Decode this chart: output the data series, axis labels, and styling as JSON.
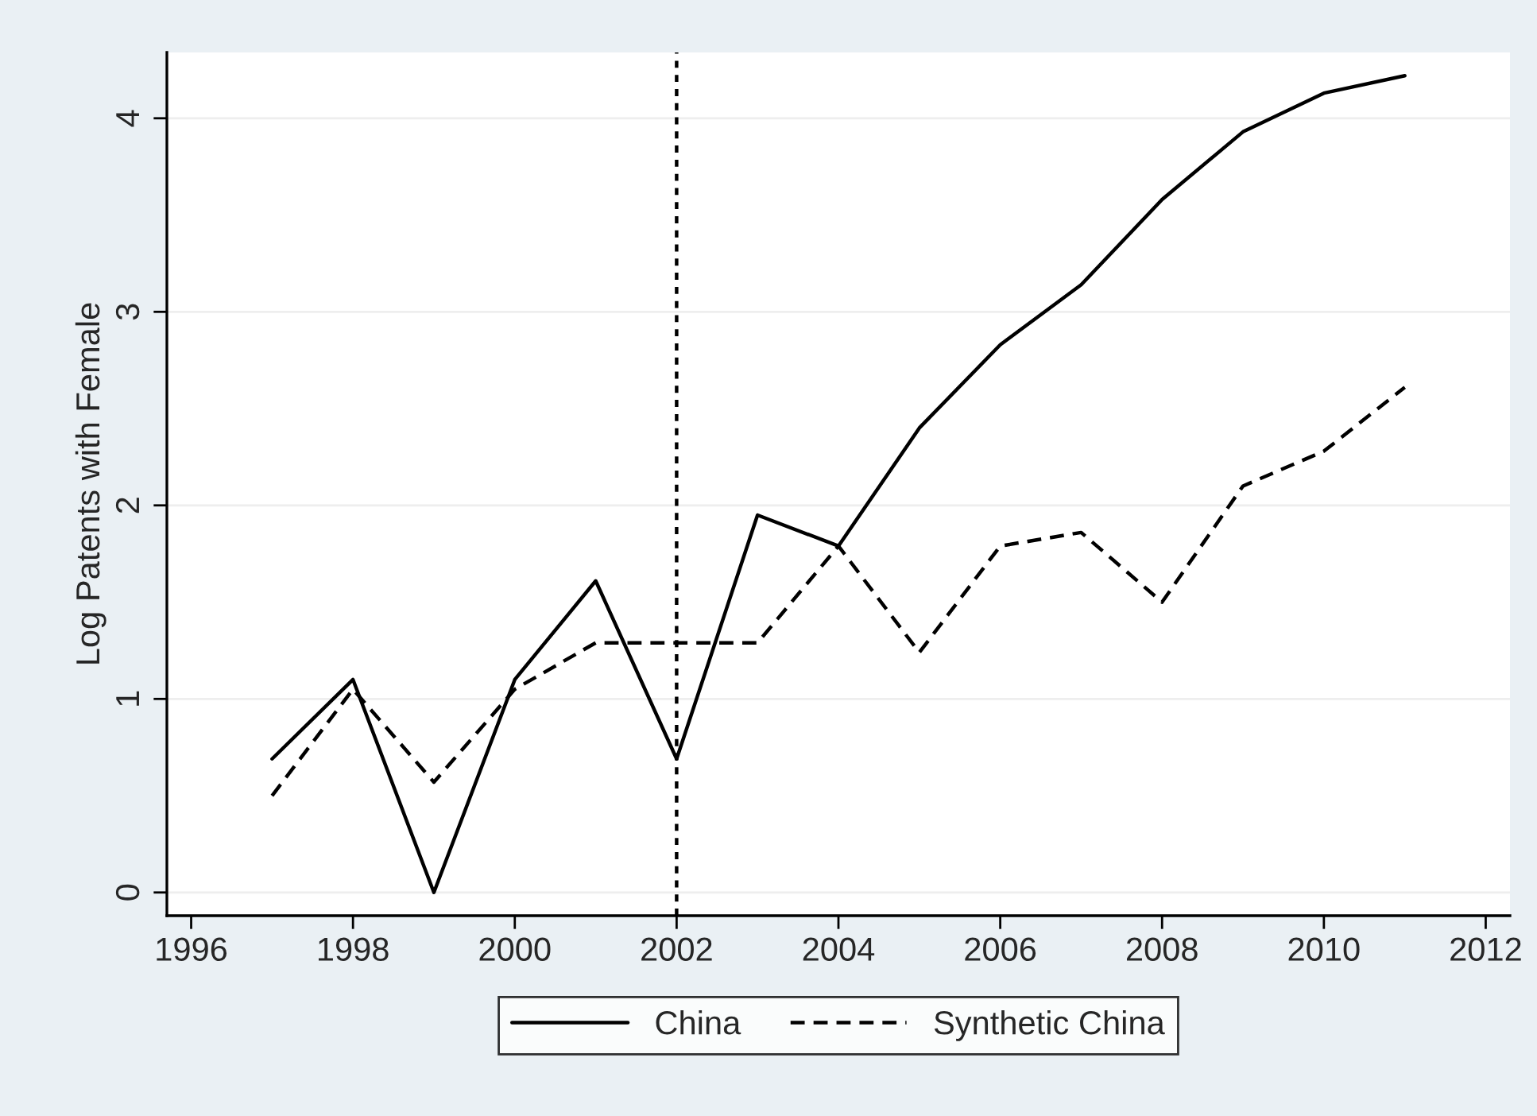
{
  "chart_data": {
    "type": "line",
    "ylabel": "Log Patents with Female",
    "x": [
      1997,
      1998,
      1999,
      2000,
      2001,
      2002,
      2003,
      2004,
      2005,
      2006,
      2007,
      2008,
      2009,
      2010,
      2011
    ],
    "series": [
      {
        "name": "China",
        "color": "#000000",
        "line_style": "solid",
        "values": [
          0.69,
          1.1,
          0.0,
          1.1,
          1.61,
          0.69,
          1.95,
          1.79,
          2.4,
          2.83,
          3.14,
          3.58,
          3.93,
          4.13,
          4.22
        ]
      },
      {
        "name": "Synthetic China",
        "color": "#000000",
        "line_style": "dashed",
        "values": [
          0.5,
          1.05,
          0.57,
          1.05,
          1.29,
          1.29,
          1.29,
          1.79,
          1.24,
          1.79,
          1.86,
          1.5,
          2.1,
          2.28,
          2.61
        ]
      }
    ],
    "xlim": [
      1995.7,
      2012.3
    ],
    "xticks": [
      1996,
      1998,
      2000,
      2002,
      2004,
      2006,
      2008,
      2010,
      2012
    ],
    "ylim": [
      -0.12,
      4.34
    ],
    "yticks": [
      0,
      1,
      2,
      3,
      4
    ],
    "ref_lines": [
      {
        "axis": "x",
        "value": 2002,
        "line_style": "dotted",
        "color": "#000000"
      }
    ],
    "grid": "y",
    "legend": "bottom",
    "marker": "none"
  }
}
